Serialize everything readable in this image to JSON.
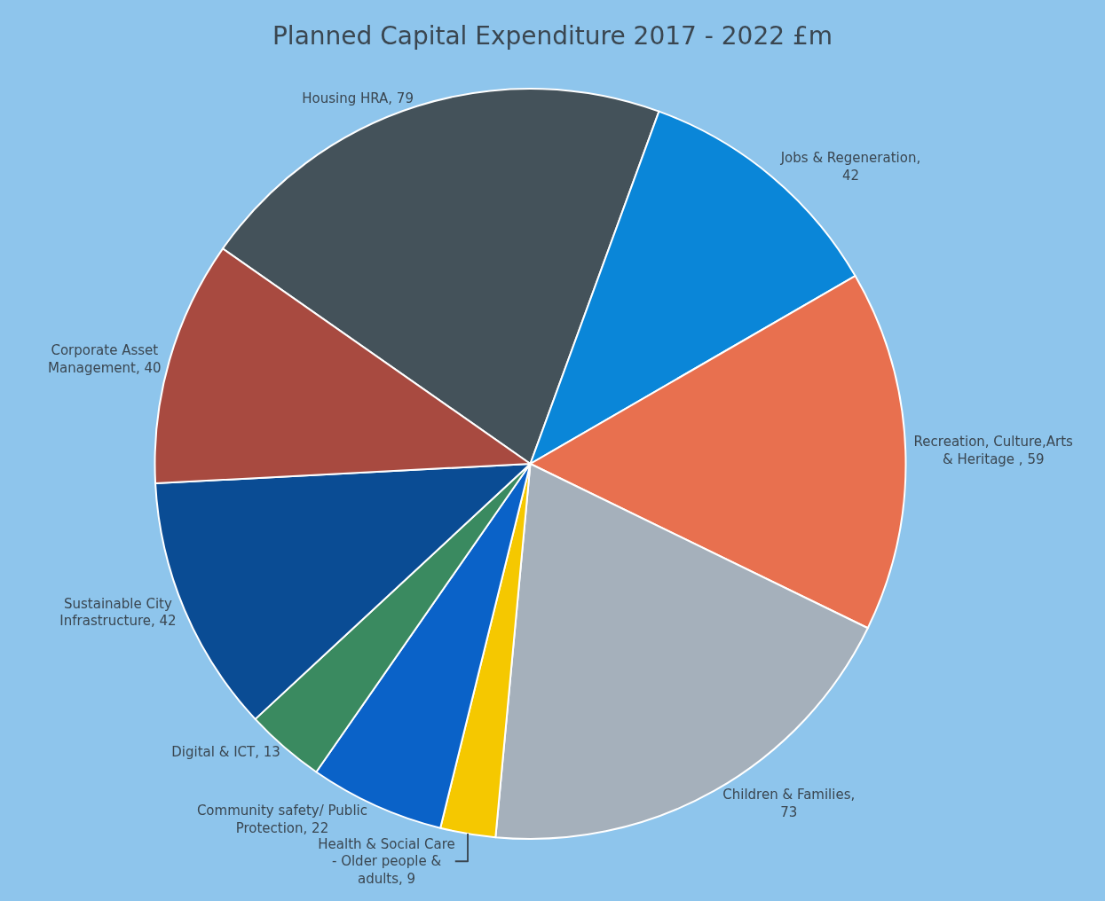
{
  "chart_data": {
    "type": "pie",
    "title": "Planned Capital Expenditure 2017 - 2022 £m",
    "categories": [
      "Housing HRA, 79",
      "Jobs & Regeneration, 42",
      "Recreation, Culture,Arts & Heritage , 59",
      "Children & Families, 73",
      "Health & Social Care - Older people & adults, 9",
      "Community safety/ Public Protection, 22",
      "Digital & ICT, 13",
      "Sustainable City Infrastructure, 42",
      "Corporate Asset Management, 40"
    ],
    "values": [
      79,
      42,
      59,
      73,
      9,
      22,
      13,
      42,
      40
    ],
    "colors": [
      "#44525a",
      "#0a86d8",
      "#e8704f",
      "#a5b0bb",
      "#f5c800",
      "#0a62c8",
      "#3a8a60",
      "#0a4c94",
      "#a84a40"
    ],
    "legend": false
  }
}
